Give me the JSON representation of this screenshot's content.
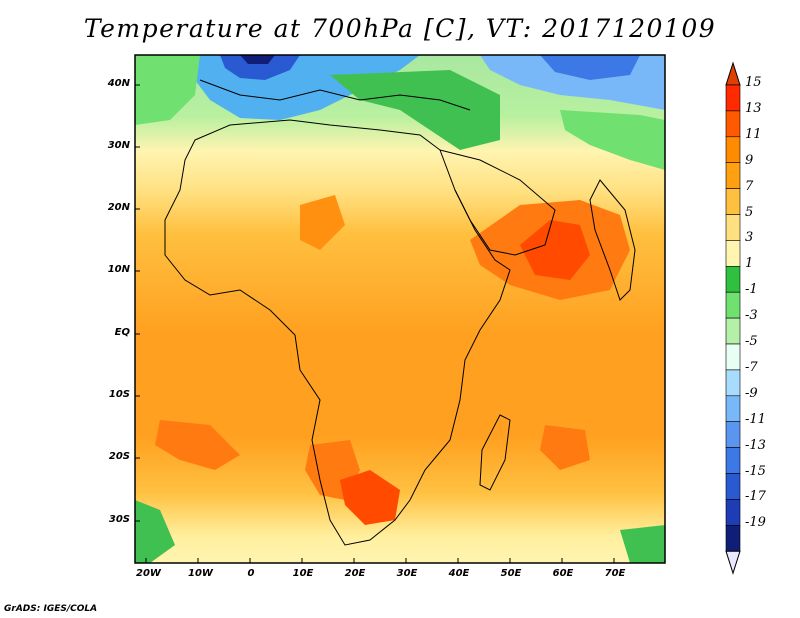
{
  "title": "Temperature at 700hPa [C], VT: 2017120109",
  "footer": "GrADS: IGES/COLA",
  "lat_ticks": [
    "40N",
    "30N",
    "20N",
    "10N",
    "EQ",
    "10S",
    "20S",
    "30S"
  ],
  "lon_ticks": [
    "20W",
    "10W",
    "0",
    "10E",
    "20E",
    "30E",
    "40E",
    "50E",
    "60E",
    "70E"
  ],
  "colorbar": {
    "labels": [
      "15",
      "13",
      "11",
      "9",
      "7",
      "5",
      "3",
      "1",
      "-1",
      "-3",
      "-5",
      "-7",
      "-9",
      "-11",
      "-13",
      "-15",
      "-17",
      "-19"
    ],
    "colors": [
      "#ff2a00",
      "#ff5a00",
      "#ff8c00",
      "#ffa010",
      "#ffc040",
      "#ffe080",
      "#fff4b0",
      "#30c040",
      "#70e070",
      "#b4f0a8",
      "#e8fff4",
      "#a8dcff",
      "#78b8f8",
      "#5a96f0",
      "#3c78e6",
      "#2a5ad2",
      "#1e3cb4",
      "#101e78"
    ],
    "over_color": "#e8e8ff",
    "under_color": "#e04000"
  }
}
